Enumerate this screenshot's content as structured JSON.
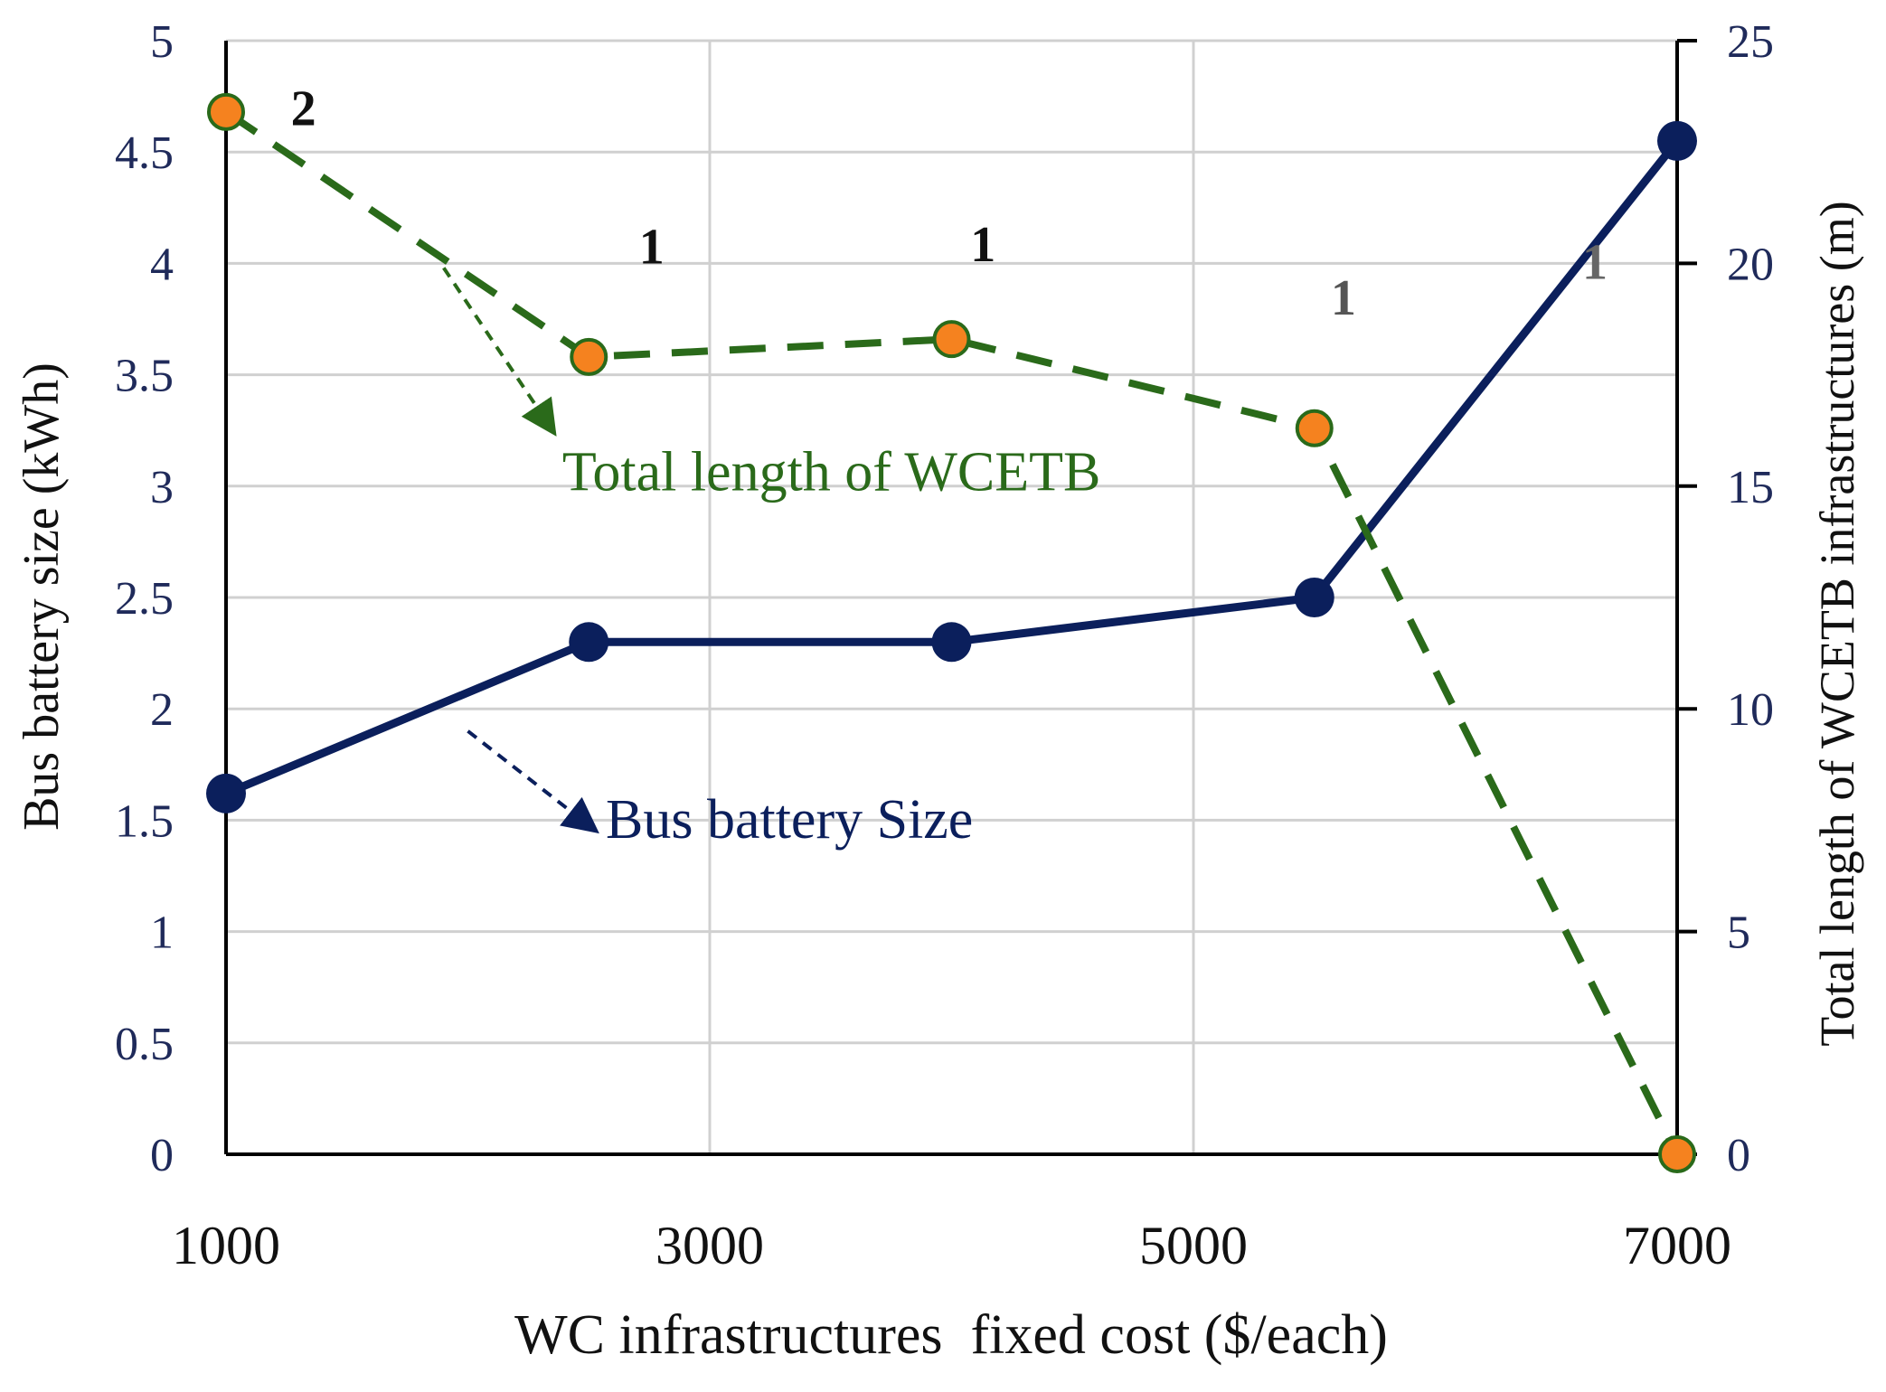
{
  "chart_data": {
    "type": "line",
    "xlabel": "WC infrastructures  fixed cost ($/each)",
    "ylabel_left": "Bus battery size (kWh)",
    "ylabel_right": "Total length of WCETB infrastructures (m)",
    "x_range": [
      1000,
      7000
    ],
    "x_ticks": [
      1000,
      3000,
      5000,
      7000
    ],
    "y_left_range": [
      0,
      5
    ],
    "y_left_ticks": [
      "0",
      "0.5",
      "1",
      "1.5",
      "2",
      "2.5",
      "3",
      "3.5",
      "4",
      "4.5",
      "5"
    ],
    "y_right_range": [
      0,
      25
    ],
    "y_right_ticks": [
      "0",
      "5",
      "10",
      "15",
      "20",
      "25"
    ],
    "grid": true,
    "series": [
      {
        "name": "Bus battery Size",
        "axis": "left",
        "style": "solid",
        "color": "#0b1f5c",
        "x": [
          1000,
          2500,
          4000,
          5500,
          7000
        ],
        "values": [
          1.62,
          2.3,
          2.3,
          2.5,
          4.55
        ]
      },
      {
        "name": "Total length  of WCETB",
        "axis": "right",
        "style": "dashed",
        "color": "#2a6a1a",
        "marker_fill": "#f5821f",
        "x": [
          1000,
          2500,
          4000,
          5500,
          7000
        ],
        "values": [
          23.4,
          17.9,
          18.3,
          16.3,
          0
        ]
      }
    ],
    "annotations": [
      {
        "text": "2",
        "x": 1320,
        "y_left": 4.62,
        "color": "#111111"
      },
      {
        "text": "1",
        "x": 2760,
        "y_left": 4.0,
        "color": "#111111"
      },
      {
        "text": "1",
        "x": 4130,
        "y_left": 4.01,
        "color": "#111111"
      },
      {
        "text": "1",
        "x": 5620,
        "y_left": 3.77,
        "color": "#555555"
      },
      {
        "text": "1",
        "x": 6660,
        "y_left": 3.93,
        "color": "#666666"
      }
    ],
    "series_labels": [
      {
        "text": "Total length  of WCETB",
        "color": "#2a6a1a",
        "x": 2390,
        "y_left": 2.98
      },
      {
        "text": "Bus battery Size",
        "color": "#0b1f5c",
        "x": 2570,
        "y_left": 1.42
      }
    ],
    "pointer_arrows": [
      {
        "color": "#2a6a1a",
        "from": [
          1900,
          3.98
        ],
        "to": [
          2350,
          3.25
        ]
      },
      {
        "color": "#0b1f5c",
        "from": [
          2000,
          1.9
        ],
        "to": [
          2520,
          1.46
        ]
      }
    ]
  }
}
